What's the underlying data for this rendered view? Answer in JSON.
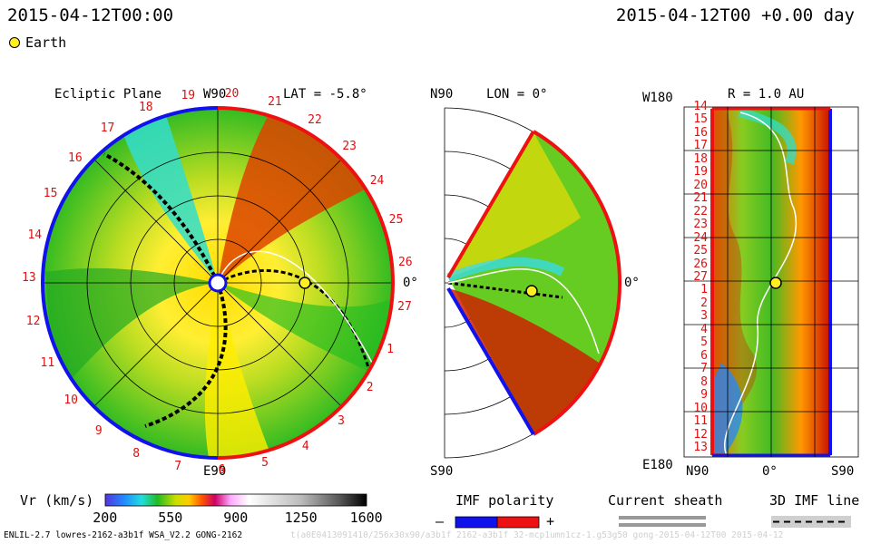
{
  "header": {
    "left_timestamp": "2015-04-12T00:00",
    "right_timestamp": "2015-04-12T00 +0.00 day"
  },
  "legend": {
    "earth_label": "Earth"
  },
  "chart_data": [
    {
      "type": "heatmap",
      "panel": "ecliptic",
      "title": "Ecliptic Plane",
      "subtitle": "LAT = -5.8°",
      "axis_labels": {
        "top": "W90",
        "bottom": "E90",
        "right": "0°"
      },
      "carrington_ticks": [
        "19",
        "20",
        "21",
        "22",
        "23",
        "24",
        "25",
        "26",
        "27",
        "1",
        "2",
        "3",
        "4",
        "5",
        "6",
        "7",
        "8",
        "9",
        "10",
        "11",
        "12",
        "13",
        "14",
        "15",
        "16",
        "17",
        "18"
      ],
      "earth": {
        "r_au": 1.0,
        "angle_deg": 0
      }
    },
    {
      "type": "heatmap",
      "panel": "meridional",
      "title": "LON = 0°",
      "axis_labels": {
        "top": "N90",
        "bottom": "S90",
        "right": "0°"
      }
    },
    {
      "type": "heatmap",
      "panel": "radial",
      "title": "R = 1.0 AU",
      "axis_labels": {
        "top_left": "W180",
        "bottom_left": "E180",
        "x_left": "N90",
        "x_center": "0°",
        "x_right": "S90"
      },
      "y_ticks": [
        "14",
        "15",
        "16",
        "17",
        "18",
        "19",
        "20",
        "21",
        "22",
        "23",
        "24",
        "25",
        "26",
        "27",
        "1",
        "2",
        "3",
        "4",
        "5",
        "6",
        "7",
        "8",
        "9",
        "10",
        "11",
        "12",
        "13"
      ]
    }
  ],
  "colorbar": {
    "label": "Vr (km/s)",
    "ticks": [
      "200",
      "550",
      "900",
      "1250",
      "1600"
    ],
    "range": [
      200,
      1600
    ]
  },
  "imf_polarity": {
    "title": "IMF polarity",
    "minus": "–",
    "plus": "+"
  },
  "current_sheath": {
    "title": "Current sheath"
  },
  "imf_3d": {
    "title": "3D IMF line"
  },
  "footer": {
    "left": "ENLIL-2.7 lowres-2162-a3b1f WSA_V2.2 GONG-2162",
    "right": "t(a0E0413091410/256x30x90/a3b1f 2162-a3b1f 32-mcp1umn1cz-1.g53g50 gong-2015-04-12T00 2015-04-12"
  },
  "colors": {
    "boundary_red": "#ee1111",
    "boundary_blue": "#1111ee",
    "earth": "#ffee22"
  }
}
